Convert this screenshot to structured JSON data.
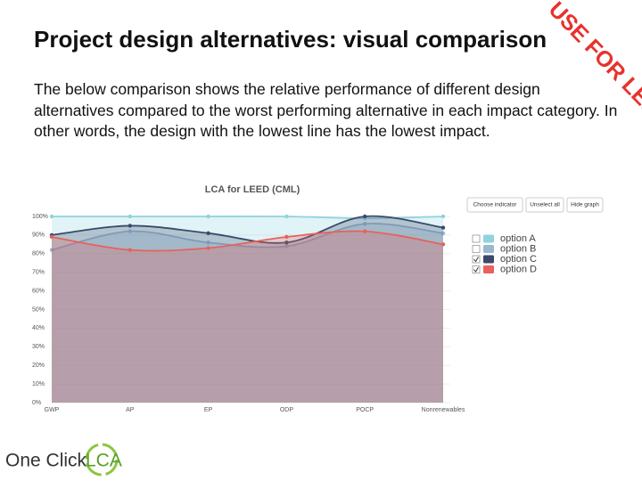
{
  "title": "Project design alternatives: visual comparison",
  "stamp": "USE FOR LEED",
  "description": "The below comparison shows the relative performance of different design alternatives compared to the worst performing alternative in each impact category. In other words, the design with the lowest line has the lowest impact.",
  "buttons": [
    "Choose indicator",
    "Unselect all",
    "Hide graph"
  ],
  "logo": {
    "name": "One Click",
    "brand": "LCA"
  },
  "chart_data": {
    "type": "area",
    "title": "LCA for LEED (CML)",
    "categories": [
      "GWP",
      "AP",
      "EP",
      "ODP",
      "POCP",
      "Nonrenewables"
    ],
    "ylim": [
      0,
      100
    ],
    "yticks": [
      {
        "value": 0,
        "label": "0%"
      },
      {
        "value": 10,
        "label": "10%"
      },
      {
        "value": 20,
        "label": "20%"
      },
      {
        "value": 30,
        "label": "30%"
      },
      {
        "value": 40,
        "label": "40%"
      },
      {
        "value": 50,
        "label": "50%"
      },
      {
        "value": 60,
        "label": "60%"
      },
      {
        "value": 70,
        "label": "70%"
      },
      {
        "value": 80,
        "label": "80%"
      },
      {
        "value": 90,
        "label": "90%"
      },
      {
        "value": 100,
        "label": "100%"
      }
    ],
    "grid": true,
    "series": [
      {
        "name": "option A",
        "color": "#8fd3de",
        "checked": false,
        "values": [
          100,
          100,
          100,
          100,
          99,
          100
        ]
      },
      {
        "name": "option B",
        "color": "#9bb8d3",
        "checked": false,
        "values": [
          82,
          92,
          86,
          84,
          96,
          91
        ]
      },
      {
        "name": "option C",
        "color": "#3a4a6b",
        "checked": true,
        "values": [
          90,
          95,
          91,
          86,
          100,
          94
        ]
      },
      {
        "name": "option D",
        "color": "#e8615d",
        "checked": true,
        "values": [
          89,
          82,
          83,
          89,
          92,
          85
        ]
      }
    ]
  }
}
